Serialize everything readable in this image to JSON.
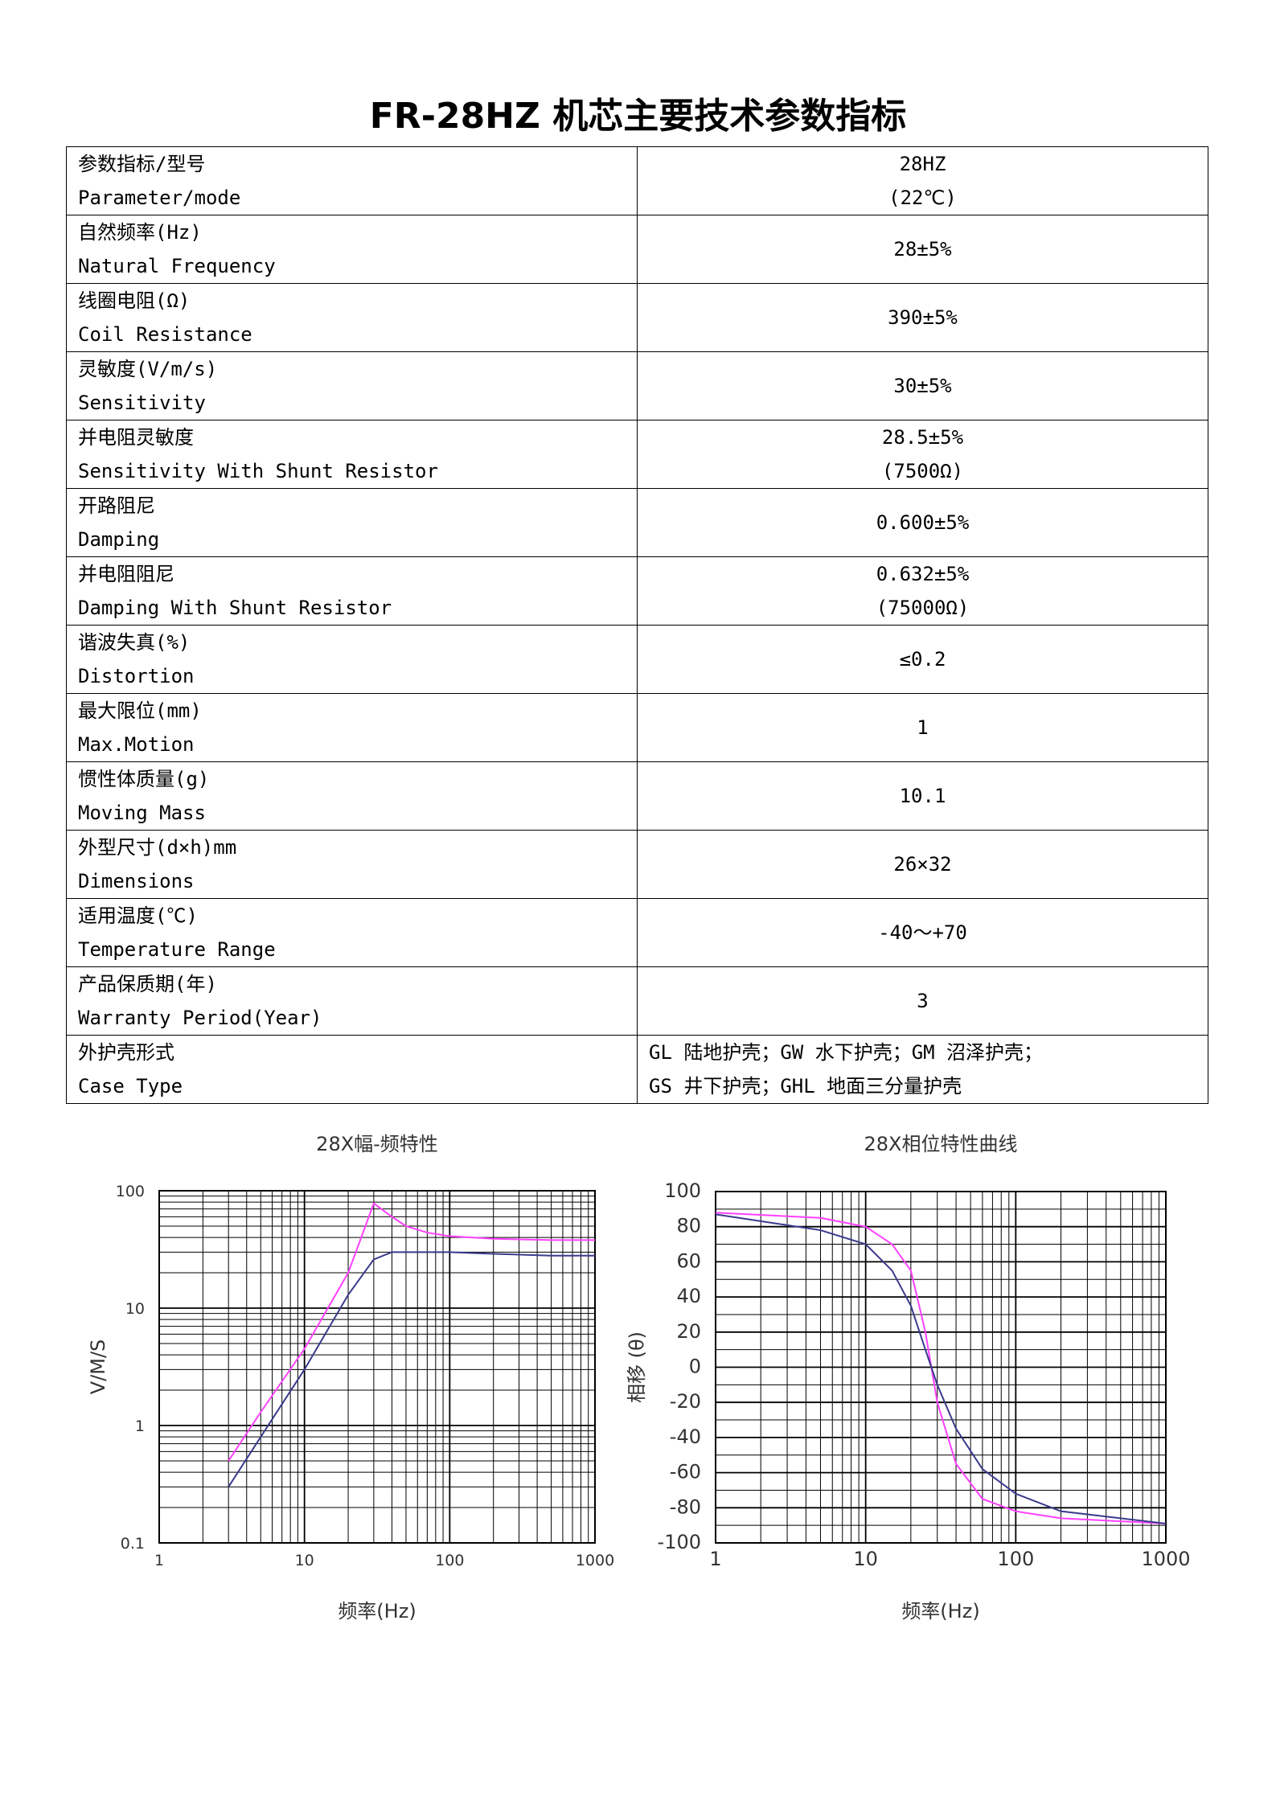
{
  "title": "FR-28HZ 机芯主要技术参数指标",
  "table": {
    "rows": [
      {
        "param": [
          "参数指标/型号",
          "Parameter/mode"
        ],
        "value": [
          "28HZ",
          "(22℃)"
        ]
      },
      {
        "param": [
          "自然频率(Hz)",
          "Natural Frequency"
        ],
        "value": [
          "28±5%"
        ]
      },
      {
        "param": [
          "线圈电阻(Ω)",
          "Coil Resistance"
        ],
        "value": [
          "390±5%"
        ]
      },
      {
        "param": [
          "灵敏度(V/m/s)",
          "Sensitivity"
        ],
        "value": [
          "30±5%"
        ]
      },
      {
        "param": [
          "并电阻灵敏度",
          "Sensitivity With Shunt Resistor"
        ],
        "value": [
          "28.5±5%",
          "(7500Ω)"
        ]
      },
      {
        "param": [
          "开路阻尼",
          "Damping"
        ],
        "value": [
          "0.600±5%"
        ]
      },
      {
        "param": [
          "并电阻阻尼",
          "Damping With Shunt Resistor"
        ],
        "value": [
          "0.632±5%",
          "(75000Ω)"
        ]
      },
      {
        "param": [
          "谐波失真(%)",
          "Distortion"
        ],
        "value": [
          "≤0.2"
        ]
      },
      {
        "param": [
          "最大限位(mm)",
          "Max.Motion"
        ],
        "value": [
          "1"
        ]
      },
      {
        "param": [
          "惯性体质量(g)",
          "Moving Mass"
        ],
        "value": [
          "10.1"
        ]
      },
      {
        "param": [
          "外型尺寸(d×h)mm",
          "Dimensions"
        ],
        "value": [
          "26×32"
        ]
      },
      {
        "param": [
          "适用温度(℃)",
          "Temperature Range"
        ],
        "value": [
          "-40～+70"
        ]
      },
      {
        "param": [
          "产品保质期(年)",
          "Warranty Period(Year)"
        ],
        "value": [
          "3"
        ]
      },
      {
        "param": [
          "外护壳形式",
          "Case Type"
        ],
        "value": [
          "GL 陆地护壳；GW 水下护壳；GM 沼泽护壳；",
          "GS 井下护壳；GHL 地面三分量护壳"
        ],
        "align": "left"
      }
    ]
  },
  "chart_data": [
    {
      "type": "line",
      "title": "28X幅-频特性",
      "x_label": "频率(Hz)",
      "y_label": "V/M/S",
      "xscale": "log",
      "yscale": "log",
      "grid": true,
      "minor_grid": true,
      "xlim": [
        1,
        1000
      ],
      "ylim": [
        0.1,
        100
      ],
      "xticks": [
        1,
        10,
        100,
        1000
      ],
      "yticks": [
        0.1,
        1,
        10,
        100
      ],
      "x": [
        3,
        5,
        10,
        20,
        30,
        40,
        50,
        70,
        100,
        200,
        500,
        1000
      ],
      "series": [
        {
          "color": "#ff40ff",
          "values": [
            0.5,
            1.3,
            4.5,
            20,
            78,
            60,
            50,
            44,
            41,
            39,
            38,
            38
          ]
        },
        {
          "color": "#3a3a8c",
          "values": [
            0.3,
            0.8,
            3,
            13,
            26,
            30,
            30,
            30,
            30,
            29,
            28,
            28
          ]
        }
      ]
    },
    {
      "type": "line",
      "title": "28X相位特性曲线",
      "x_label": "频率(Hz)",
      "y_label": "相移 (θ)",
      "xscale": "log",
      "yscale": "linear",
      "grid": true,
      "minor_grid": true,
      "xlim": [
        1,
        1000
      ],
      "ylim": [
        -100,
        100
      ],
      "xticks": [
        1,
        10,
        100,
        1000
      ],
      "yticks": [
        -100,
        -80,
        -60,
        -40,
        -20,
        0,
        20,
        40,
        60,
        80,
        100
      ],
      "x": [
        1,
        5,
        10,
        15,
        20,
        25,
        30,
        40,
        60,
        100,
        200,
        1000
      ],
      "series": [
        {
          "color": "#ff40ff",
          "values": [
            88,
            85,
            80,
            70,
            55,
            20,
            -20,
            -55,
            -75,
            -82,
            -86,
            -89
          ]
        },
        {
          "color": "#3a3a8c",
          "values": [
            87,
            78,
            70,
            55,
            35,
            10,
            -10,
            -35,
            -58,
            -72,
            -82,
            -89
          ]
        }
      ]
    }
  ]
}
